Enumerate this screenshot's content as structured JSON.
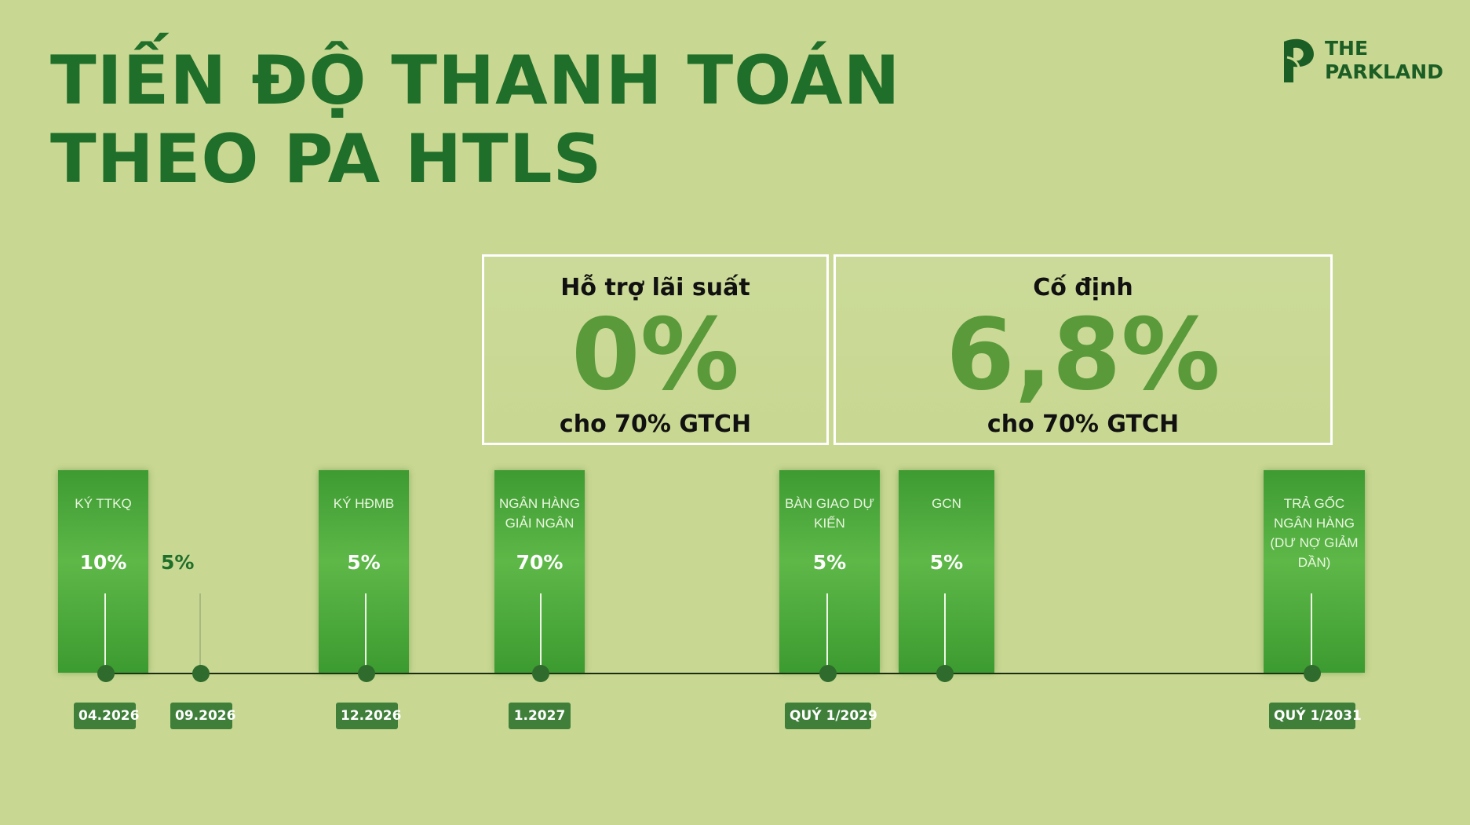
{
  "title": {
    "line1": "TIẾN ĐỘ THANH TOÁN",
    "line2": "THEO PA HTLS"
  },
  "logo": {
    "line1": "THE",
    "line2": "PARKLAND",
    "icon": "parkland-p-leaf-icon"
  },
  "rates": [
    {
      "label": "Hỗ trợ lãi suất",
      "value": "0%",
      "note": "cho 70% GTCH"
    },
    {
      "label": "Cố định",
      "value": "6,8%",
      "note": "cho 70% GTCH"
    }
  ],
  "stages": [
    {
      "label": "KÝ TTKQ",
      "percent": "10%",
      "date": "04.2026",
      "card": true
    },
    {
      "label": "",
      "percent": "5%",
      "date": "09.2026",
      "card": false
    },
    {
      "label": "KÝ HĐMB",
      "percent": "5%",
      "date": "12.2026",
      "card": true
    },
    {
      "label": "NGÂN HÀNG GIẢI NGÂN",
      "percent": "70%",
      "date": "1.2027",
      "card": true
    },
    {
      "label": "BÀN GIAO DỰ KIẾN",
      "percent": "5%",
      "date": "QUÝ 1/2029",
      "card": true
    },
    {
      "label": "GCN",
      "percent": "5%",
      "date": "",
      "card": true
    },
    {
      "label": "TRẢ GỐC NGÂN HÀNG (DƯ NỢ GIẢM DẦN)",
      "percent": "",
      "date": "QUÝ 1/2031",
      "card": true
    }
  ],
  "colors": {
    "background": "#c8d892",
    "title": "#1f6e2a",
    "card": "#4fae3c",
    "rate_value": "#5a9a3a",
    "date_pill": "#3f7f3a"
  }
}
